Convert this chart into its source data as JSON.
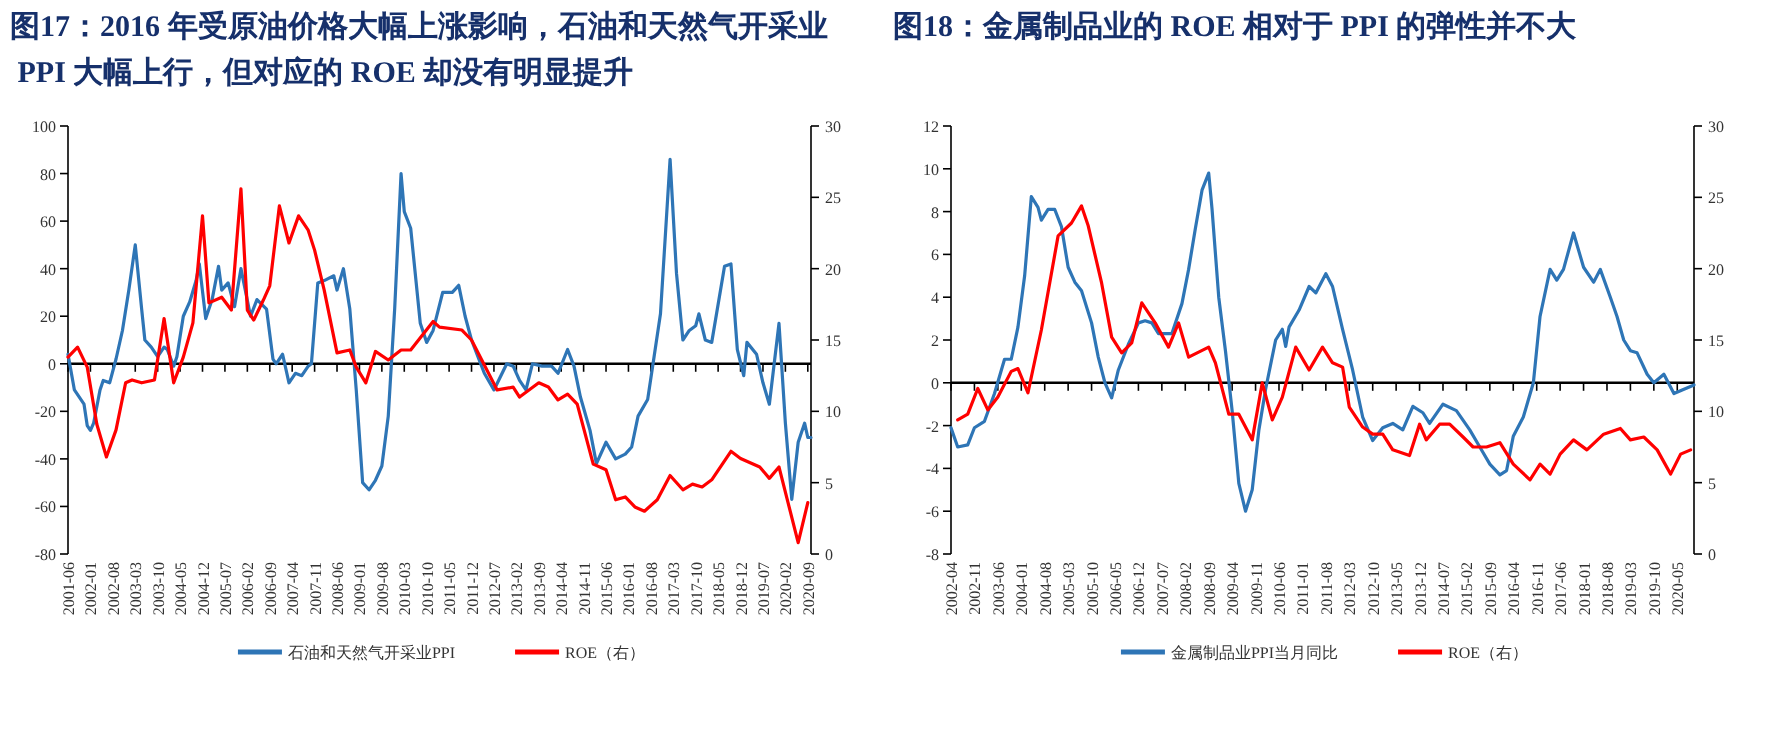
{
  "chart_data": [
    {
      "type": "line",
      "title": "图17：2016 年受原油价格大幅上涨影响，石油和天然气开采业 PPI 大幅上行，但对应的 ROE 却没有明显提升",
      "legend": "bottom",
      "xlim": [
        "2001-06",
        "2020-10"
      ],
      "xticks": [
        "2001-06",
        "2002-01",
        "2002-08",
        "2003-03",
        "2003-10",
        "2004-05",
        "2004-12",
        "2005-07",
        "2006-02",
        "2006-09",
        "2007-04",
        "2007-11",
        "2008-06",
        "2009-01",
        "2009-08",
        "2010-03",
        "2010-10",
        "2011-05",
        "2011-12",
        "2012-07",
        "2013-02",
        "2013-09",
        "2014-04",
        "2014-11",
        "2015-06",
        "2016-01",
        "2016-08",
        "2017-03",
        "2017-10",
        "2018-05",
        "2018-12",
        "2019-07",
        "2020-02",
        "2020-09"
      ],
      "ylim": [
        -80,
        100
      ],
      "yticks": [
        -80,
        -60,
        -40,
        -20,
        0,
        20,
        40,
        60,
        80,
        100
      ],
      "y2lim": [
        0,
        30
      ],
      "y2ticks": [
        0,
        5,
        10,
        15,
        20,
        25,
        30
      ],
      "series": [
        {
          "name": "石油和天然气开采业PPI",
          "color": "#2e75b6",
          "x": [
            "2001-06",
            "2001-08",
            "2001-11",
            "2001-12",
            "2002-01",
            "2002-02",
            "2002-04",
            "2002-05",
            "2002-07",
            "2002-09",
            "2002-11",
            "2003-01",
            "2003-03",
            "2003-05",
            "2003-06",
            "2003-08",
            "2003-10",
            "2003-12",
            "2004-01",
            "2004-03",
            "2004-04",
            "2004-06",
            "2004-08",
            "2004-10",
            "2004-11",
            "2005-01",
            "2005-03",
            "2005-05",
            "2005-06",
            "2005-08",
            "2005-10",
            "2005-12",
            "2006-03",
            "2006-05",
            "2006-08",
            "2006-10",
            "2006-11",
            "2007-01",
            "2007-03",
            "2007-05",
            "2007-07",
            "2007-09",
            "2007-10",
            "2007-12",
            "2008-02",
            "2008-05",
            "2008-06",
            "2008-08",
            "2008-10",
            "2008-12",
            "2009-02",
            "2009-04",
            "2009-06",
            "2009-08",
            "2009-10",
            "2009-12",
            "2010-02",
            "2010-03",
            "2010-05",
            "2010-08",
            "2010-10",
            "2010-12",
            "2011-03",
            "2011-06",
            "2011-08",
            "2011-10",
            "2011-12",
            "2012-02",
            "2012-04",
            "2012-07",
            "2012-11",
            "2013-01",
            "2013-03",
            "2013-05",
            "2013-07",
            "2013-10",
            "2014-01",
            "2014-03",
            "2014-06",
            "2014-08",
            "2014-10",
            "2015-01",
            "2015-03",
            "2015-06",
            "2015-09",
            "2015-12",
            "2016-02",
            "2016-04",
            "2016-07",
            "2016-09",
            "2016-11",
            "2017-02",
            "2017-04",
            "2017-06",
            "2017-08",
            "2017-10",
            "2017-11",
            "2018-01",
            "2018-03",
            "2018-07",
            "2018-09",
            "2018-11",
            "2019-01",
            "2019-02",
            "2019-05",
            "2019-07",
            "2019-09",
            "2019-12",
            "2020-02",
            "2020-04",
            "2020-06",
            "2020-08",
            "2020-09",
            "2020-10"
          ],
          "values": [
            4,
            -11,
            -17,
            -26,
            -28,
            -25,
            -11,
            -7,
            -8,
            2,
            14,
            31,
            50,
            23,
            10,
            7,
            3,
            7,
            6,
            -1,
            3,
            20,
            26,
            35,
            42,
            19,
            27,
            41,
            31,
            34,
            24,
            40,
            20,
            27,
            23,
            2,
            0,
            4,
            -8,
            -4,
            -5,
            -1,
            0,
            34,
            35,
            37,
            31,
            40,
            23,
            -11,
            -50,
            -53,
            -49,
            -43,
            -22,
            23,
            80,
            64,
            57,
            17,
            9,
            14,
            30,
            30,
            33,
            20,
            10,
            3,
            -4,
            -11,
            0,
            -1,
            -7,
            -11,
            0,
            -1,
            -1,
            -4,
            6,
            -1,
            -14,
            -28,
            -42,
            -33,
            -40,
            -38,
            -35,
            -22,
            -15,
            3,
            21,
            86,
            38,
            10,
            14,
            16,
            21,
            10,
            9,
            41,
            42,
            6,
            -5,
            9,
            4,
            -8,
            -17,
            17,
            -25,
            -57,
            -33,
            -25,
            -31,
            -31
          ]
        },
        {
          "name": "ROE（右）",
          "color": "#ff0000",
          "axis": "y2",
          "x": [
            "2001-06",
            "2001-09",
            "2001-12",
            "2002-03",
            "2002-06",
            "2002-09",
            "2002-12",
            "2003-02",
            "2003-05",
            "2003-09",
            "2003-12",
            "2004-03",
            "2004-06",
            "2004-09",
            "2004-12",
            "2005-02",
            "2005-06",
            "2005-09",
            "2005-12",
            "2006-02",
            "2006-04",
            "2006-07",
            "2006-09",
            "2006-12",
            "2007-03",
            "2007-06",
            "2007-09",
            "2007-11",
            "2008-02",
            "2008-06",
            "2008-10",
            "2008-12",
            "2009-03",
            "2009-06",
            "2009-10",
            "2010-02",
            "2010-05",
            "2010-12",
            "2011-02",
            "2011-09",
            "2011-12",
            "2012-08",
            "2013-01",
            "2013-03",
            "2013-09",
            "2013-12",
            "2014-03",
            "2014-06",
            "2014-09",
            "2015-02",
            "2015-06",
            "2015-09",
            "2015-12",
            "2016-03",
            "2016-06",
            "2016-10",
            "2017-02",
            "2017-06",
            "2017-09",
            "2017-12",
            "2018-03",
            "2018-09",
            "2018-12",
            "2019-06",
            "2019-09",
            "2019-12",
            "2020-06",
            "2020-09"
          ],
          "values": [
            13.8,
            14.5,
            13.1,
            9.1,
            6.8,
            8.7,
            12.0,
            12.2,
            12.0,
            12.2,
            16.5,
            12.0,
            13.8,
            16.2,
            23.7,
            17.6,
            18.0,
            17.1,
            25.6,
            17.1,
            16.4,
            17.8,
            18.8,
            24.4,
            21.8,
            23.7,
            22.7,
            21.3,
            18.5,
            14.1,
            14.3,
            13.1,
            12.0,
            14.2,
            13.6,
            14.3,
            14.3,
            16.3,
            15.9,
            15.7,
            15.0,
            11.5,
            11.7,
            11.0,
            12.0,
            11.7,
            10.8,
            11.2,
            10.5,
            6.3,
            5.9,
            3.8,
            4.0,
            3.3,
            3.0,
            3.8,
            5.5,
            4.5,
            4.9,
            4.7,
            5.2,
            7.2,
            6.7,
            6.1,
            5.3,
            6.1,
            0.8,
            3.6
          ]
        }
      ]
    },
    {
      "type": "line",
      "title": "图18：金属制品业的 ROE 相对于 PPI 的弹性并不大",
      "legend": "bottom",
      "xlim": [
        "2002-04",
        "2020-10"
      ],
      "xticks": [
        "2002-04",
        "2002-11",
        "2003-06",
        "2004-01",
        "2004-08",
        "2005-03",
        "2005-10",
        "2006-05",
        "2006-12",
        "2007-07",
        "2008-02",
        "2008-09",
        "2009-04",
        "2009-11",
        "2010-06",
        "2011-01",
        "2011-08",
        "2012-03",
        "2012-10",
        "2013-05",
        "2013-12",
        "2014-07",
        "2015-02",
        "2015-09",
        "2016-04",
        "2016-11",
        "2017-06",
        "2018-01",
        "2018-08",
        "2019-03",
        "2019-10",
        "2020-05"
      ],
      "ylim": [
        -8,
        12
      ],
      "yticks": [
        -8,
        -6,
        -4,
        -2,
        0,
        2,
        4,
        6,
        8,
        10,
        12
      ],
      "y2lim": [
        0,
        30
      ],
      "y2ticks": [
        0,
        5,
        10,
        15,
        20,
        25,
        30
      ],
      "series": [
        {
          "name": "金属制品业PPI当月同比",
          "color": "#2e75b6",
          "x": [
            "2002-04",
            "2002-06",
            "2002-09",
            "2002-11",
            "2003-02",
            "2003-05",
            "2003-08",
            "2003-10",
            "2003-12",
            "2004-02",
            "2004-04",
            "2004-06",
            "2004-07",
            "2004-09",
            "2004-11",
            "2005-01",
            "2005-03",
            "2005-05",
            "2005-07",
            "2005-10",
            "2005-12",
            "2006-02",
            "2006-04",
            "2006-06",
            "2006-09",
            "2006-12",
            "2007-02",
            "2007-04",
            "2007-06",
            "2007-10",
            "2008-01",
            "2008-03",
            "2008-05",
            "2008-07",
            "2008-09",
            "2008-10",
            "2008-12",
            "2009-02",
            "2009-04",
            "2009-06",
            "2009-08",
            "2009-10",
            "2009-12",
            "2010-02",
            "2010-05",
            "2010-07",
            "2010-08",
            "2010-09",
            "2010-12",
            "2011-03",
            "2011-05",
            "2011-08",
            "2011-10",
            "2012-01",
            "2012-04",
            "2012-07",
            "2012-10",
            "2013-01",
            "2013-04",
            "2013-07",
            "2013-10",
            "2014-01",
            "2014-03",
            "2014-07",
            "2014-11",
            "2015-03",
            "2015-06",
            "2015-09",
            "2015-12",
            "2016-02",
            "2016-04",
            "2016-07",
            "2016-10",
            "2016-12",
            "2017-03",
            "2017-05",
            "2017-07",
            "2017-10",
            "2018-01",
            "2018-04",
            "2018-06",
            "2018-09",
            "2018-11",
            "2019-01",
            "2019-03",
            "2019-05",
            "2019-08",
            "2019-10",
            "2020-01",
            "2020-04",
            "2020-07",
            "2020-10"
          ],
          "values": [
            -2.1,
            -3.0,
            -2.9,
            -2.1,
            -1.8,
            -0.5,
            1.1,
            1.1,
            2.6,
            5.0,
            8.7,
            8.2,
            7.6,
            8.1,
            8.1,
            7.3,
            5.4,
            4.7,
            4.3,
            2.8,
            1.2,
            0,
            -0.7,
            0.6,
            1.8,
            2.8,
            2.9,
            2.8,
            2.3,
            2.3,
            3.7,
            5.3,
            7.2,
            9.0,
            9.8,
            8.1,
            4.0,
            1.5,
            -1.3,
            -4.7,
            -6.0,
            -5.0,
            -2.2,
            -0.3,
            2.0,
            2.5,
            1.7,
            2.6,
            3.4,
            4.5,
            4.2,
            5.1,
            4.5,
            2.5,
            0.6,
            -1.6,
            -2.7,
            -2.1,
            -1.9,
            -2.2,
            -1.1,
            -1.4,
            -1.9,
            -1.0,
            -1.3,
            -2.2,
            -3.0,
            -3.8,
            -4.3,
            -4.1,
            -2.5,
            -1.6,
            0,
            3.1,
            5.3,
            4.8,
            5.3,
            7.0,
            5.4,
            4.7,
            5.3,
            4.0,
            3.1,
            2.0,
            1.5,
            1.4,
            0.4,
            0,
            0.4,
            -0.5,
            -0.3,
            -0.1
          ]
        },
        {
          "name": "ROE（右）",
          "color": "#ff0000",
          "axis": "y2",
          "x": [
            "2002-06",
            "2002-09",
            "2002-12",
            "2003-03",
            "2003-06",
            "2003-10",
            "2003-12",
            "2004-03",
            "2004-07",
            "2004-12",
            "2005-04",
            "2005-07",
            "2005-09",
            "2006-01",
            "2006-04",
            "2006-07",
            "2006-10",
            "2007-01",
            "2007-05",
            "2007-09",
            "2007-12",
            "2008-03",
            "2008-09",
            "2008-11",
            "2009-03",
            "2009-06",
            "2009-10",
            "2010-01",
            "2010-04",
            "2010-07",
            "2010-11",
            "2011-03",
            "2011-07",
            "2011-10",
            "2012-01",
            "2012-03",
            "2012-07",
            "2012-10",
            "2013-01",
            "2013-04",
            "2013-09",
            "2013-12",
            "2014-02",
            "2014-06",
            "2014-09",
            "2015-01",
            "2015-04",
            "2015-08",
            "2015-12",
            "2016-04",
            "2016-09",
            "2016-12",
            "2017-03",
            "2017-06",
            "2017-10",
            "2018-02",
            "2018-07",
            "2018-12",
            "2019-03",
            "2019-07",
            "2019-11",
            "2020-03",
            "2020-06",
            "2020-09"
          ],
          "values": [
            9.4,
            9.8,
            11.6,
            10.1,
            11.0,
            12.8,
            13.0,
            11.3,
            15.7,
            22.3,
            23.2,
            24.4,
            23.0,
            19.0,
            15.2,
            14.1,
            14.8,
            17.6,
            16.2,
            14.5,
            16.2,
            13.8,
            14.5,
            13.4,
            9.8,
            9.8,
            8.0,
            12.0,
            9.4,
            11.0,
            14.5,
            12.9,
            14.5,
            13.4,
            13.1,
            10.3,
            8.9,
            8.4,
            8.4,
            7.3,
            6.9,
            9.1,
            8.0,
            9.1,
            9.1,
            8.2,
            7.5,
            7.5,
            7.8,
            6.3,
            5.2,
            6.3,
            5.6,
            7.0,
            8.0,
            7.3,
            8.4,
            8.8,
            8.0,
            8.2,
            7.3,
            5.6,
            7.0,
            7.3
          ]
        }
      ]
    }
  ]
}
